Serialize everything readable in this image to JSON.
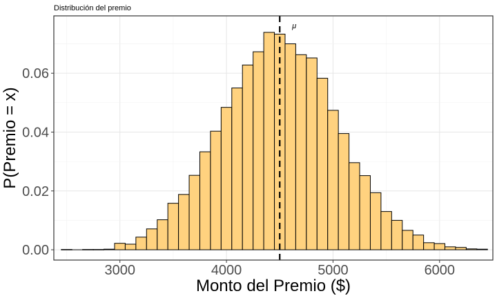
{
  "chart_data": {
    "type": "bar",
    "title": "Distribución del premio",
    "xlabel": "Monto del Premio ($)",
    "ylabel": "P(Premio = x)",
    "xlim": [
      2380,
      6500
    ],
    "ylim": [
      -0.0035,
      0.0795
    ],
    "x_ticks": [
      3000,
      4000,
      5000,
      6000
    ],
    "x_tick_labels": [
      "3000",
      "4000",
      "5000",
      "6000"
    ],
    "y_ticks": [
      0,
      0.02,
      0.04,
      0.06
    ],
    "y_tick_labels": [
      "0.00",
      "0.02",
      "0.04",
      "0.06"
    ],
    "bin_width": 100,
    "bins": [
      {
        "x0": 2450,
        "x1": 2550,
        "y": 0.0001
      },
      {
        "x0": 2550,
        "x1": 2650,
        "y": 0.0
      },
      {
        "x0": 2650,
        "x1": 2750,
        "y": 0.0001
      },
      {
        "x0": 2750,
        "x1": 2850,
        "y": 0.0001
      },
      {
        "x0": 2850,
        "x1": 2950,
        "y": 0.0002
      },
      {
        "x0": 2950,
        "x1": 3050,
        "y": 0.0022
      },
      {
        "x0": 3050,
        "x1": 3150,
        "y": 0.0019
      },
      {
        "x0": 3150,
        "x1": 3250,
        "y": 0.0043
      },
      {
        "x0": 3250,
        "x1": 3350,
        "y": 0.0071
      },
      {
        "x0": 3350,
        "x1": 3450,
        "y": 0.0102
      },
      {
        "x0": 3450,
        "x1": 3550,
        "y": 0.0158
      },
      {
        "x0": 3550,
        "x1": 3650,
        "y": 0.0188
      },
      {
        "x0": 3650,
        "x1": 3750,
        "y": 0.0253
      },
      {
        "x0": 3750,
        "x1": 3850,
        "y": 0.0333
      },
      {
        "x0": 3850,
        "x1": 3950,
        "y": 0.0403
      },
      {
        "x0": 3950,
        "x1": 4050,
        "y": 0.0484
      },
      {
        "x0": 4050,
        "x1": 4150,
        "y": 0.055
      },
      {
        "x0": 4150,
        "x1": 4250,
        "y": 0.0628
      },
      {
        "x0": 4250,
        "x1": 4350,
        "y": 0.0673
      },
      {
        "x0": 4350,
        "x1": 4450,
        "y": 0.0739
      },
      {
        "x0": 4450,
        "x1": 4550,
        "y": 0.0733
      },
      {
        "x0": 4550,
        "x1": 4650,
        "y": 0.07
      },
      {
        "x0": 4650,
        "x1": 4750,
        "y": 0.0663
      },
      {
        "x0": 4750,
        "x1": 4850,
        "y": 0.0652
      },
      {
        "x0": 4850,
        "x1": 4950,
        "y": 0.0583
      },
      {
        "x0": 4950,
        "x1": 5050,
        "y": 0.0474
      },
      {
        "x0": 5050,
        "x1": 5150,
        "y": 0.0395
      },
      {
        "x0": 5150,
        "x1": 5250,
        "y": 0.0296
      },
      {
        "x0": 5250,
        "x1": 5350,
        "y": 0.0252
      },
      {
        "x0": 5350,
        "x1": 5450,
        "y": 0.0194
      },
      {
        "x0": 5450,
        "x1": 5550,
        "y": 0.013
      },
      {
        "x0": 5550,
        "x1": 5650,
        "y": 0.01
      },
      {
        "x0": 5650,
        "x1": 5750,
        "y": 0.0066
      },
      {
        "x0": 5750,
        "x1": 5850,
        "y": 0.005
      },
      {
        "x0": 5850,
        "x1": 5950,
        "y": 0.0024
      },
      {
        "x0": 5950,
        "x1": 6050,
        "y": 0.0021
      },
      {
        "x0": 6050,
        "x1": 6150,
        "y": 0.001
      },
      {
        "x0": 6150,
        "x1": 6250,
        "y": 0.0008
      },
      {
        "x0": 6250,
        "x1": 6350,
        "y": 0.0003
      },
      {
        "x0": 6350,
        "x1": 6450,
        "y": 0.0002
      }
    ],
    "bar_fill": "#FFD27F",
    "bar_stroke": "#000000",
    "mean_line": {
      "x": 4500,
      "label": "μ",
      "style": "dashed",
      "color": "#000000"
    },
    "grid": true,
    "legend": "none"
  }
}
